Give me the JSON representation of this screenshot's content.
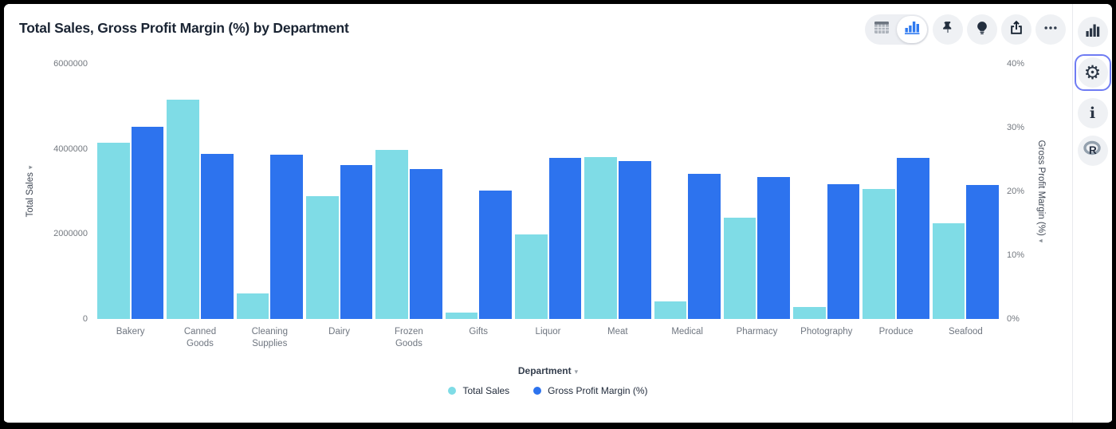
{
  "header": {
    "title": "Total Sales, Gross Profit Margin (%) by Department"
  },
  "toolbar": {
    "buttons": [
      {
        "name": "table-view",
        "selected": false
      },
      {
        "name": "chart-view",
        "selected": true
      },
      {
        "name": "pin",
        "selected": false
      },
      {
        "name": "lightbulb",
        "selected": false
      },
      {
        "name": "share",
        "selected": false
      },
      {
        "name": "more-options",
        "selected": false
      }
    ]
  },
  "sidebar": {
    "buttons": [
      {
        "name": "visualization",
        "selected": false
      },
      {
        "name": "settings",
        "selected": true
      },
      {
        "name": "info",
        "selected": false
      },
      {
        "name": "r-logo",
        "selected": false
      }
    ]
  },
  "glyphs": {
    "axis_arrow": "▾",
    "dropdown_arrow": "▾",
    "gear": "⚙",
    "info": "i",
    "r_logo": "R"
  },
  "colors": {
    "total_sales": "#7FDCE6",
    "gross_profit_margin": "#2D73EE",
    "selected_border": "#6F7CF3",
    "title_text": "#1A2433"
  },
  "chart_data": {
    "type": "bar",
    "title": "Total Sales, Gross Profit Margin (%) by Department",
    "grid": false,
    "legend_position": "bottom",
    "categories": [
      "Bakery",
      "Canned Goods",
      "Cleaning Supplies",
      "Dairy",
      "Frozen Goods",
      "Gifts",
      "Liquor",
      "Meat",
      "Medical",
      "Pharmacy",
      "Photography",
      "Produce",
      "Seafood"
    ],
    "series": [
      {
        "name": "Total Sales",
        "axis": "left",
        "color": "#7FDCE6",
        "values": [
          4150000,
          5160000,
          600000,
          2890000,
          3970000,
          160000,
          1980000,
          3800000,
          420000,
          2390000,
          290000,
          3050000,
          2250000
        ]
      },
      {
        "name": "Gross Profit Margin (%)",
        "axis": "right",
        "color": "#2D73EE",
        "values": [
          30.1,
          25.9,
          25.7,
          24.1,
          23.5,
          20.1,
          25.3,
          24.7,
          22.8,
          22.3,
          21.1,
          25.2,
          21.0
        ]
      }
    ],
    "y_left": {
      "label": "Total Sales",
      "min": 0,
      "max": 6000000,
      "ticks": [
        {
          "label": "0",
          "value": 0
        },
        {
          "label": "2000000",
          "value": 2000000
        },
        {
          "label": "4000000",
          "value": 4000000
        },
        {
          "label": "6000000",
          "value": 6000000
        }
      ]
    },
    "y_right": {
      "label": "Gross Profit Margin (%)",
      "min": 0,
      "max": 40,
      "ticks": [
        {
          "label": "0%",
          "value": 0
        },
        {
          "label": "10%",
          "value": 10
        },
        {
          "label": "20%",
          "value": 20
        },
        {
          "label": "30%",
          "value": 30
        },
        {
          "label": "40%",
          "value": 40
        }
      ]
    },
    "x": {
      "label": "Department"
    },
    "legend": [
      "Total Sales",
      "Gross Profit Margin (%)"
    ]
  }
}
